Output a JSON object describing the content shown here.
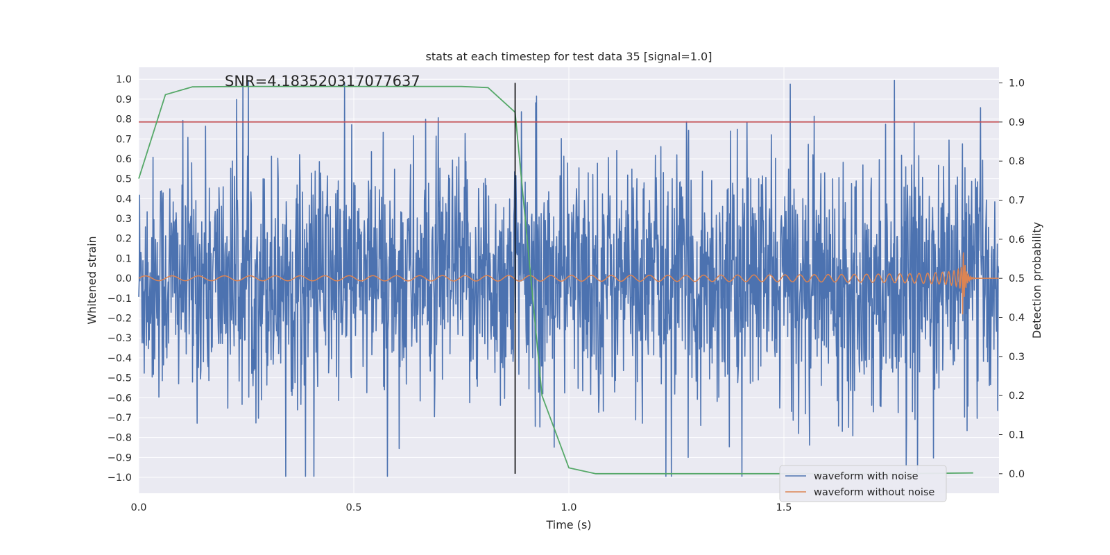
{
  "chart_data": {
    "type": "line",
    "title": "stats at each timestep for test data 35 [signal=1.0]",
    "xlabel": "Time (s)",
    "ylabel": "Whitened strain",
    "y2label": "Detection probability",
    "xlim": [
      0,
      2.0
    ],
    "ylim": [
      -1.08,
      1.06
    ],
    "y2lim": [
      -0.05,
      1.04
    ],
    "xticks": [
      0.0,
      0.5,
      1.0,
      1.5
    ],
    "xtick_labels": [
      "0.0",
      "0.5",
      "1.0",
      "1.5"
    ],
    "yticks": [
      1.0,
      0.9,
      0.8,
      0.7,
      0.6,
      0.5,
      0.4,
      0.3,
      0.2,
      0.1,
      0.0,
      -0.1,
      -0.2,
      -0.3,
      -0.4,
      -0.5,
      -0.6,
      -0.7,
      -0.8,
      -0.9,
      -1.0
    ],
    "ytick_labels": [
      "1.0",
      "0.9",
      "0.8",
      "0.7",
      "0.6",
      "0.5",
      "0.4",
      "0.3",
      "0.2",
      "0.1",
      "0.0",
      "−0.1",
      "−0.2",
      "−0.3",
      "−0.4",
      "−0.5",
      "−0.6",
      "−0.7",
      "−0.8",
      "−0.9",
      "−1.0"
    ],
    "y2ticks": [
      1.0,
      0.9,
      0.8,
      0.7,
      0.6,
      0.5,
      0.4,
      0.3,
      0.2,
      0.1,
      0.0
    ],
    "y2tick_labels": [
      "1.0",
      "0.9",
      "0.8",
      "0.7",
      "0.6",
      "0.5",
      "0.4",
      "0.3",
      "0.2",
      "0.1",
      "0.0"
    ],
    "grid": true,
    "annotation": "SNR=4.183520317077637",
    "annotation_position": {
      "x": 0.2,
      "y": 0.99
    },
    "threshold_probability": 0.9,
    "event_time": 0.875,
    "series": [
      {
        "name": "waveform with noise",
        "axis": "left",
        "color": "#4c72b0",
        "description": "noisy whitened strain, approx 2048 samples over 0-2 s, amplitude mostly within +/-0.5 with peaks to about +/-1.0",
        "sample_count": 2048
      },
      {
        "name": "waveform without noise",
        "axis": "left",
        "color": "#dd8452",
        "description": "chirp: small oscillation growing in frequency and amplitude, peaking near t=1.9 s then ringdown",
        "chirp": {
          "t_merge": 1.915,
          "amp_start": 0.012,
          "amp_peak": 0.2,
          "cycles_per_period_start": 16
        }
      },
      {
        "name": "detection probability",
        "axis": "right",
        "color": "#55a868",
        "x": [
          0.0,
          0.062,
          0.125,
          0.25,
          0.375,
          0.5,
          0.625,
          0.75,
          0.812,
          0.875,
          0.9375,
          1.0,
          1.0625,
          1.125,
          1.25,
          1.5,
          1.75,
          1.94
        ],
        "y": [
          0.755,
          0.97,
          0.99,
          0.991,
          0.991,
          0.991,
          0.991,
          0.991,
          0.988,
          0.925,
          0.2,
          0.015,
          0.0,
          0.0,
          0.0,
          0.0,
          0.0,
          0.002
        ]
      },
      {
        "name": "threshold",
        "axis": "right",
        "color": "#c44e52",
        "y": 0.9
      }
    ],
    "legend": {
      "placement": "bottom-right",
      "entries": [
        {
          "label": "waveform with noise",
          "color": "#4c72b0"
        },
        {
          "label": "waveform without noise",
          "color": "#dd8452"
        }
      ]
    },
    "colors": {
      "background": "#eaeaf2",
      "grid": "#ffffff",
      "event_line": "#000000"
    }
  }
}
